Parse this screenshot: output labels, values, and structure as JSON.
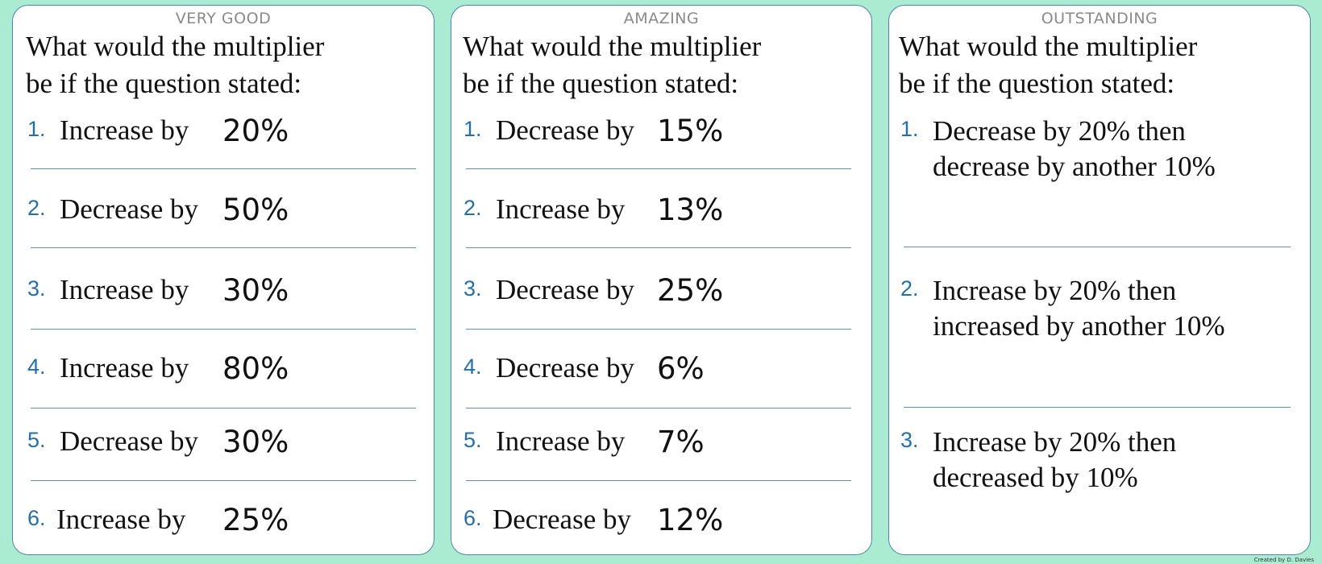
{
  "prompt": {
    "line1": "What would the multiplier",
    "line2": "be if the question stated:"
  },
  "cards": [
    {
      "title": "VERY GOOD",
      "items": [
        {
          "num": "1.",
          "label": "Increase by",
          "pct": "20%"
        },
        {
          "num": "2.",
          "label": "Decrease by",
          "pct": "50%"
        },
        {
          "num": "3.",
          "label": "Increase by",
          "pct": "30%"
        },
        {
          "num": "4.",
          "label": "Increase by",
          "pct": "80%"
        },
        {
          "num": "5.",
          "label": "Decrease by",
          "pct": "30%"
        },
        {
          "num": "6.",
          "label": "Increase by",
          "pct": "25%"
        }
      ]
    },
    {
      "title": "AMAZING",
      "items": [
        {
          "num": "1.",
          "label": "Decrease by",
          "pct": "15%"
        },
        {
          "num": "2.",
          "label": "Increase by",
          "pct": "13%"
        },
        {
          "num": "3.",
          "label": "Decrease by",
          "pct": "25%"
        },
        {
          "num": "4.",
          "label": "Decrease by",
          "pct": "6%"
        },
        {
          "num": "5.",
          "label": "Increase by",
          "pct": "7%"
        },
        {
          "num": "6.",
          "label": "Decrease by",
          "pct": "12%"
        }
      ]
    },
    {
      "title": "OUTSTANDING",
      "items": [
        {
          "num": "1.",
          "line1": "Decrease by 20% then",
          "line2": "decrease by another 10%"
        },
        {
          "num": "2.",
          "line1": "Increase by 20% then",
          "line2": "increased by another 10%"
        },
        {
          "num": "3.",
          "line1": "Increase by 20% then",
          "line2": "decreased by 10%"
        }
      ]
    }
  ],
  "credit": "Created by D. Davies"
}
